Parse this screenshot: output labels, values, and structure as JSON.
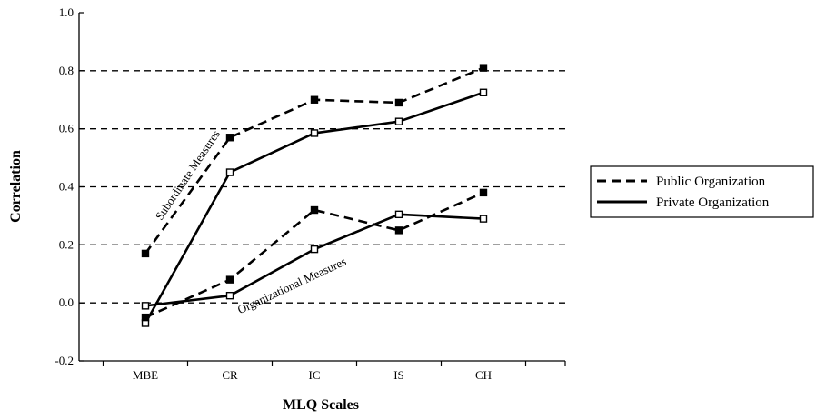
{
  "chart_data": {
    "type": "line",
    "xlabel": "MLQ Scales",
    "ylabel": "Correlation",
    "categories": [
      "MBE",
      "CR",
      "IC",
      "IS",
      "CH"
    ],
    "ylim": [
      -0.2,
      1.0
    ],
    "yticks": [
      "-0.2",
      "0.0",
      "0.2",
      "0.4",
      "0.6",
      "0.8",
      "1.0"
    ],
    "grid": "horizontal-dashed",
    "legend_position": "right",
    "legend": [
      {
        "label": "Public Organization",
        "style": "dashed"
      },
      {
        "label": "Private Organization",
        "style": "solid"
      }
    ],
    "series": [
      {
        "name": "Public Organization",
        "group": "Subordinate Measures",
        "style": "dashed",
        "values": [
          0.17,
          0.57,
          0.7,
          0.69,
          0.81
        ]
      },
      {
        "name": "Private Organization",
        "group": "Subordinate Measures",
        "style": "solid",
        "values": [
          -0.07,
          0.45,
          0.585,
          0.625,
          0.725
        ]
      },
      {
        "name": "Public Organization",
        "group": "Organizational Measures",
        "style": "dashed",
        "values": [
          -0.05,
          0.08,
          0.32,
          0.25,
          0.38
        ]
      },
      {
        "name": "Private Organization",
        "group": "Organizational Measures",
        "style": "solid",
        "values": [
          -0.01,
          0.025,
          0.185,
          0.305,
          0.29
        ]
      }
    ],
    "annotations": [
      {
        "text": "Subordinate Measures"
      },
      {
        "text": "Organizational Measures"
      }
    ],
    "colors": {
      "line": "#000000",
      "grid": "#000000"
    }
  }
}
